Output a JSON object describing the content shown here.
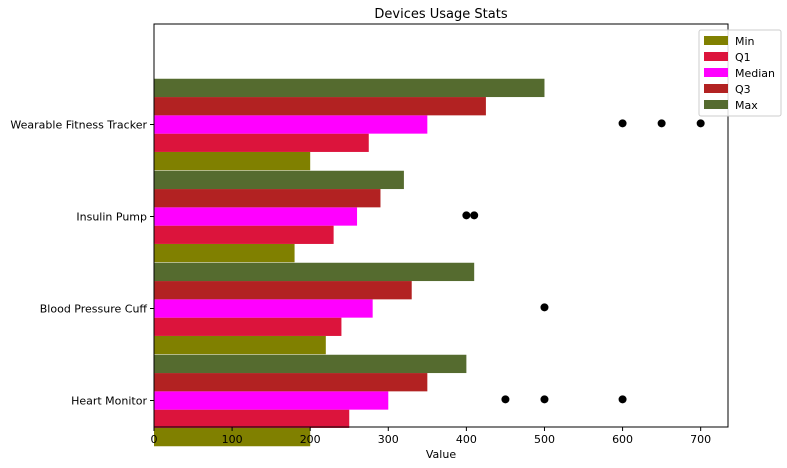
{
  "chart_data": {
    "type": "bar",
    "orientation": "horizontal",
    "title": "Devices Usage Stats",
    "xlabel": "Value",
    "ylabel": "",
    "xlim": [
      0,
      735
    ],
    "xticks": [
      0,
      100,
      200,
      300,
      400,
      500,
      600,
      700
    ],
    "categories": [
      "Heart Monitor",
      "Blood Pressure Cuff",
      "Insulin Pump",
      "Wearable Fitness Tracker"
    ],
    "series": [
      {
        "name": "Min",
        "color": "#808000",
        "values": [
          200,
          220,
          180,
          200
        ]
      },
      {
        "name": "Q1",
        "color": "#dc143c",
        "values": [
          250,
          240,
          230,
          275
        ]
      },
      {
        "name": "Median",
        "color": "#ff00ff",
        "values": [
          300,
          280,
          260,
          350
        ]
      },
      {
        "name": "Q3",
        "color": "#b22222",
        "values": [
          350,
          330,
          290,
          425
        ]
      },
      {
        "name": "Max",
        "color": "#556b2f",
        "values": [
          400,
          410,
          320,
          500
        ]
      }
    ],
    "outliers": [
      {
        "category": "Heart Monitor",
        "values": [
          450,
          500,
          600
        ]
      },
      {
        "category": "Blood Pressure Cuff",
        "values": [
          500
        ]
      },
      {
        "category": "Insulin Pump",
        "values": [
          400,
          410
        ]
      },
      {
        "category": "Wearable Fitness Tracker",
        "values": [
          600,
          650,
          700
        ]
      }
    ],
    "outlier_color": "#000000",
    "legend": "top-right",
    "grid": false
  }
}
